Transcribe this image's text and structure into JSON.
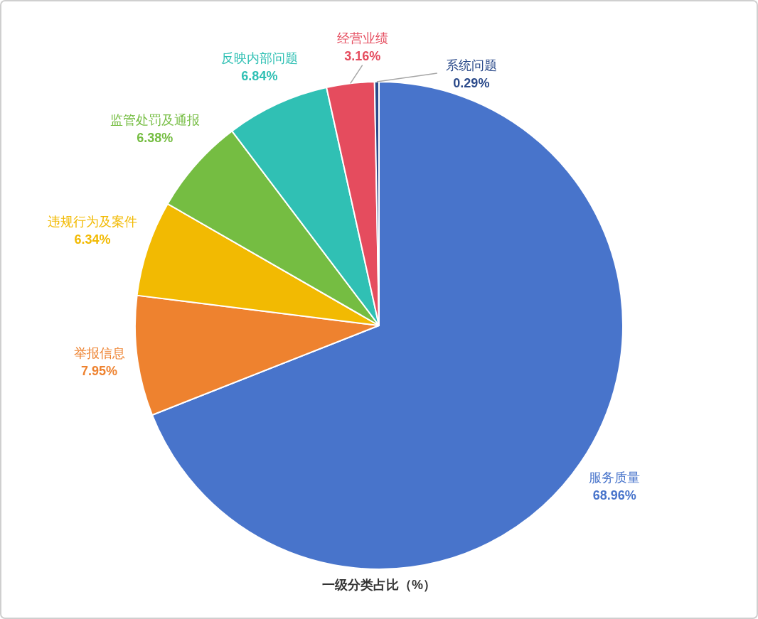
{
  "chart_data": {
    "type": "pie",
    "title": "一级分类占比（%）",
    "categories": [
      "服务质量",
      "举报信息",
      "违规行为及案件",
      "监管处罚及通报",
      "反映内部问题",
      "经营业绩",
      "系统问题"
    ],
    "values": [
      68.96,
      7.95,
      6.34,
      6.38,
      6.84,
      3.16,
      0.29
    ],
    "value_labels": [
      "68.96%",
      "7.95%",
      "6.34%",
      "6.38%",
      "6.84%",
      "3.16%",
      "0.29%"
    ],
    "colors": [
      "#4874cb",
      "#ee822f",
      "#f2ba02",
      "#75bd42",
      "#30c0b4",
      "#e54c5e",
      "#2b4a8a"
    ]
  }
}
